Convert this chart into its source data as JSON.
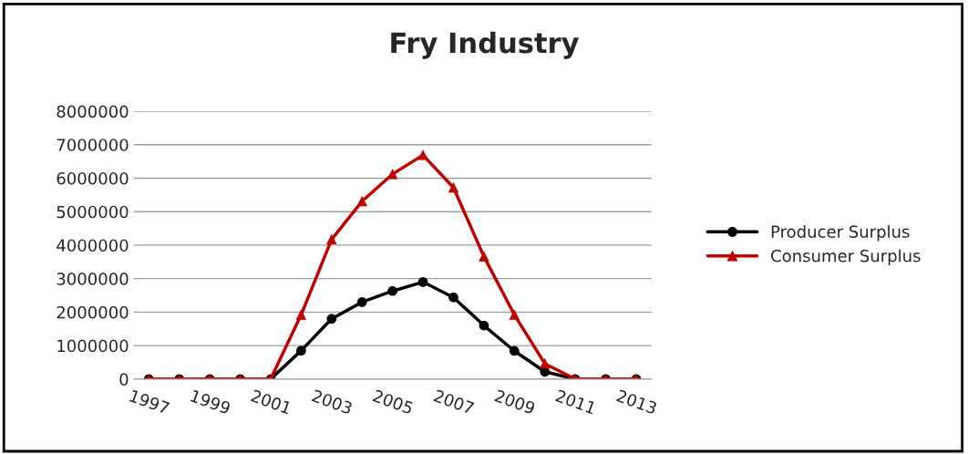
{
  "chart_data": {
    "type": "line",
    "title": "Fry Industry",
    "categories": [
      "1997",
      null,
      "1999",
      null,
      "2001",
      null,
      "2003",
      null,
      "2005",
      null,
      "2007",
      null,
      "2009",
      null,
      "2011",
      null,
      "2013"
    ],
    "series": [
      {
        "name": "Producer Surplus",
        "color": "#000000",
        "marker": "circle",
        "values": [
          0,
          0,
          0,
          0,
          0,
          850000,
          1800000,
          2300000,
          2630000,
          2900000,
          2440000,
          1600000,
          840000,
          220000,
          0,
          0,
          0
        ]
      },
      {
        "name": "Consumer Surplus",
        "color": "#c00000",
        "marker": "triangle",
        "values": [
          0,
          0,
          0,
          0,
          0,
          1920000,
          4170000,
          5310000,
          6120000,
          6690000,
          5720000,
          3660000,
          1920000,
          460000,
          0,
          0,
          0
        ]
      }
    ],
    "ylim": [
      0,
      8000000
    ],
    "yticks": [
      0,
      1000000,
      2000000,
      3000000,
      4000000,
      5000000,
      6000000,
      7000000,
      8000000
    ],
    "grid": "y",
    "legend": "right",
    "line_style": "solid"
  }
}
